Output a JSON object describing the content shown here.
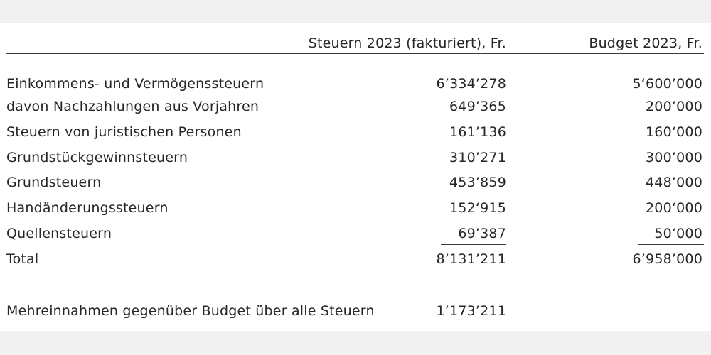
{
  "table": {
    "headers": {
      "label": "",
      "col1": "Steuern 2023 (fakturiert), Fr.",
      "col2": "Budget 2023, Fr."
    },
    "rows": [
      {
        "label": "Einkommens- und Vermögenssteuern",
        "col1": "6’334’278",
        "col2": "5‘600’000"
      },
      {
        "label": "davon Nachzahlungen aus Vorjahren",
        "col1": "649’365",
        "col2": "200’000"
      },
      {
        "label": "Steuern von juristischen Personen",
        "col1": "161’136",
        "col2": "160‘000"
      },
      {
        "label": "Grundstückgewinnsteuern",
        "col1": "310’271",
        "col2": "300’000"
      },
      {
        "label": "Grundsteuern",
        "col1": "453’859",
        "col2": "448’000"
      },
      {
        "label": "Handänderungssteuern",
        "col1": "152‘915",
        "col2": "200‘000"
      },
      {
        "label": "Quellensteuern",
        "col1": "69’387",
        "col2": "50‘000"
      }
    ],
    "total": {
      "label": "Total",
      "col1": "8’131’211",
      "col2": "6’958’000"
    },
    "summary": {
      "label": "Mehreinnahmen gegenüber Budget über alle Steuern",
      "col1": "1’173’211"
    }
  }
}
